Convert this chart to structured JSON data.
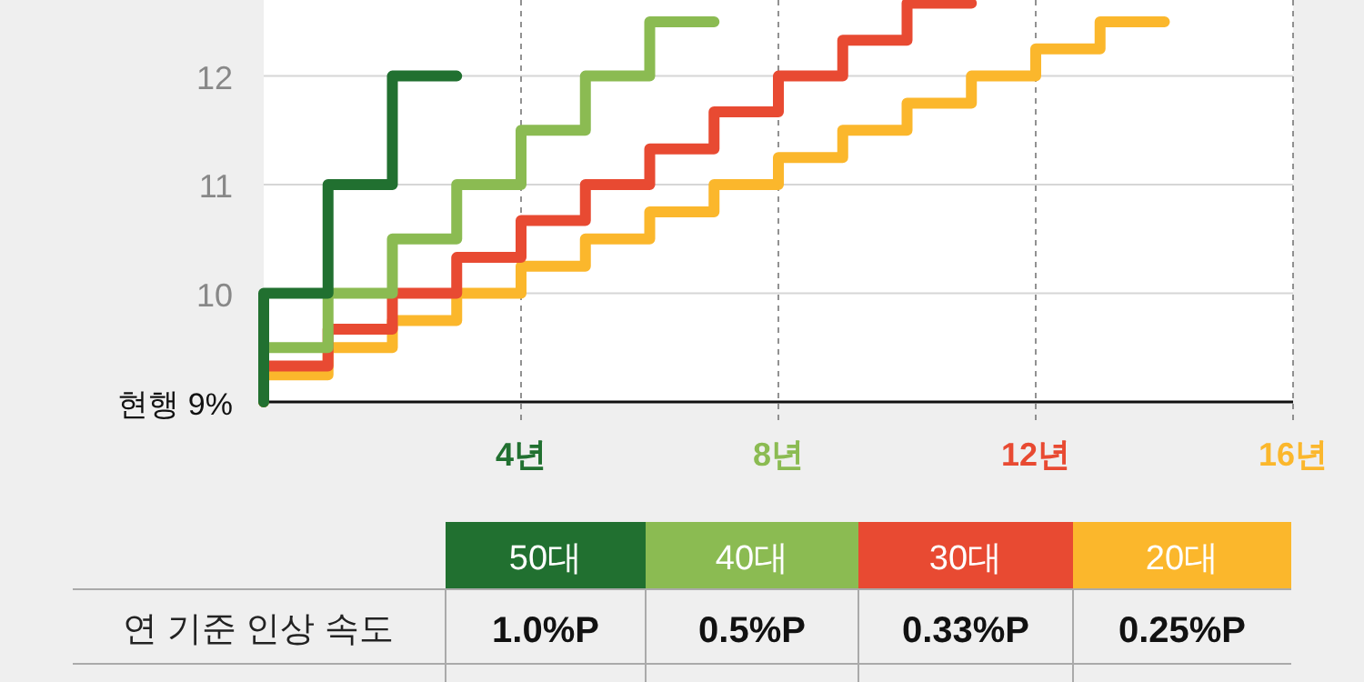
{
  "chart_data": {
    "type": "step",
    "series": [
      {
        "name": "50대",
        "color": "#217030",
        "x": [
          0,
          0,
          1,
          2,
          3
        ],
        "values": [
          9,
          10,
          11,
          12,
          12
        ]
      },
      {
        "name": "40대",
        "color": "#8bbb52",
        "x": [
          0,
          0,
          1,
          2,
          3,
          4,
          5,
          6,
          7
        ],
        "values": [
          9,
          9.5,
          10,
          10.5,
          11,
          11.5,
          12,
          12.5,
          12.5
        ]
      },
      {
        "name": "30대",
        "color": "#e84a32",
        "x": [
          0,
          0,
          1,
          2,
          3,
          4,
          5,
          6,
          7,
          8,
          9,
          10,
          11
        ],
        "values": [
          9,
          9.33,
          9.67,
          10,
          10.33,
          10.67,
          11,
          11.33,
          11.67,
          12,
          12.33,
          12.67,
          12.67
        ]
      },
      {
        "name": "20대",
        "color": "#fbb72c",
        "x": [
          0,
          0,
          1,
          2,
          3,
          4,
          5,
          6,
          7,
          8,
          9,
          10,
          11,
          12,
          13,
          14
        ],
        "values": [
          9,
          9.25,
          9.5,
          9.75,
          10,
          10.25,
          10.5,
          10.75,
          11,
          11.25,
          11.5,
          11.75,
          12,
          12.25,
          12.5,
          12.5
        ]
      }
    ],
    "xlim": [
      0,
      16
    ],
    "xticks": [
      {
        "value": 4,
        "label": "4년"
      },
      {
        "value": 8,
        "label": "8년"
      },
      {
        "value": 12,
        "label": "12년"
      },
      {
        "value": 16,
        "label": "16년"
      }
    ],
    "ylim": [
      9,
      12.7
    ],
    "yticks": [
      {
        "value": 9,
        "label": "현행 9%"
      },
      10,
      11,
      12
    ],
    "grid": true,
    "legend": "bottom",
    "annotations": [
      "연 기준 인상 속도",
      "1.0%P",
      "0.5%P",
      "0.33%P",
      "0.25%P"
    ]
  }
}
